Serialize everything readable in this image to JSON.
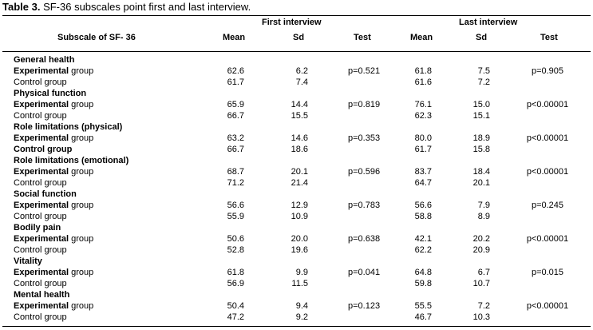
{
  "caption": {
    "label": "Table 3.",
    "text": " SF-36 subscales point first and last interview."
  },
  "headers": {
    "subscale": "Subscale of SF- 36",
    "first_interview": "First interview",
    "last_interview": "Last interview",
    "mean": "Mean",
    "sd": "Sd",
    "test": "Test"
  },
  "groups": [
    {
      "category": "General health",
      "rows": [
        {
          "name_bold": "Experimental",
          "name_rest": " group",
          "m1": "62.6",
          "sd1": "6.2",
          "test1": "p=0.521",
          "m2": "61.8",
          "sd2": "7.5",
          "test2": "p=0.905"
        },
        {
          "name_bold": "",
          "name_rest": "Control group",
          "m1": "61.7",
          "sd1": "7.4",
          "test1": "",
          "m2": "61.6",
          "sd2": "7.2",
          "test2": ""
        }
      ]
    },
    {
      "category": "Physical function",
      "rows": [
        {
          "name_bold": "Experimental",
          "name_rest": " group",
          "m1": "65.9",
          "sd1": "14.4",
          "test1": "p=0.819",
          "m2": "76.1",
          "sd2": "15.0",
          "test2": "p<0.00001"
        },
        {
          "name_bold": "",
          "name_rest": "Control group",
          "m1": "66.7",
          "sd1": "15.5",
          "test1": "",
          "m2": "62.3",
          "sd2": "15.1",
          "test2": ""
        }
      ]
    },
    {
      "category": "Role limitations (physical)",
      "rows": [
        {
          "name_bold": "Experimental",
          "name_rest": " group",
          "m1": "63.2",
          "sd1": "14.6",
          "test1": "p=0.353",
          "m2": "80.0",
          "sd2": "18.9",
          "test2": "p<0.00001"
        },
        {
          "name_bold": "Control group",
          "name_rest": "",
          "m1": "66.7",
          "sd1": "18.6",
          "test1": "",
          "m2": "61.7",
          "sd2": "15.8",
          "test2": ""
        }
      ]
    },
    {
      "category": "Role limitations (emotional)",
      "rows": [
        {
          "name_bold": "Experimental",
          "name_rest": " group",
          "m1": "68.7",
          "sd1": "20.1",
          "test1": "p=0.596",
          "m2": "83.7",
          "sd2": "18.4",
          "test2": "p<0.00001"
        },
        {
          "name_bold": "",
          "name_rest": "Control group",
          "m1": "71.2",
          "sd1": "21.4",
          "test1": "",
          "m2": "64.7",
          "sd2": "20.1",
          "test2": ""
        }
      ]
    },
    {
      "category": "Social function",
      "rows": [
        {
          "name_bold": "Experimental",
          "name_rest": " group",
          "m1": "56.6",
          "sd1": "12.9",
          "test1": "p=0.783",
          "m2": "56.6",
          "sd2": "7.9",
          "test2": "p=0.245"
        },
        {
          "name_bold": "",
          "name_rest": "Control group",
          "m1": "55.9",
          "sd1": "10.9",
          "test1": "",
          "m2": "58.8",
          "sd2": "8.9",
          "test2": ""
        }
      ]
    },
    {
      "category": "Bodily pain",
      "rows": [
        {
          "name_bold": "Experimental",
          "name_rest": " group",
          "m1": "50.6",
          "sd1": "20.0",
          "test1": "p=0.638",
          "m2": "42.1",
          "sd2": "20.2",
          "test2": "p<0.00001"
        },
        {
          "name_bold": "",
          "name_rest": "Control group",
          "m1": "52.8",
          "sd1": "19.6",
          "test1": "",
          "m2": "62.2",
          "sd2": "20.9",
          "test2": ""
        }
      ]
    },
    {
      "category": "Vitality",
      "rows": [
        {
          "name_bold": "Experimental",
          "name_rest": " group",
          "m1": "61.8",
          "sd1": "9.9",
          "test1": "p=0.041",
          "m2": "64.8",
          "sd2": "6.7",
          "test2": "p=0.015"
        },
        {
          "name_bold": "",
          "name_rest": "Control group",
          "m1": "56.9",
          "sd1": "11.5",
          "test1": "",
          "m2": "59.8",
          "sd2": "10.7",
          "test2": ""
        }
      ]
    },
    {
      "category": "Mental health",
      "rows": [
        {
          "name_bold": "Experimental",
          "name_rest": " group",
          "m1": "50.4",
          "sd1": "9.4",
          "test1": "p=0.123",
          "m2": "55.5",
          "sd2": "7.2",
          "test2": "p<0.00001"
        },
        {
          "name_bold": "",
          "name_rest": "Control group",
          "m1": "47.2",
          "sd1": "9.2",
          "test1": "",
          "m2": "46.7",
          "sd2": "10.3",
          "test2": ""
        }
      ]
    }
  ]
}
